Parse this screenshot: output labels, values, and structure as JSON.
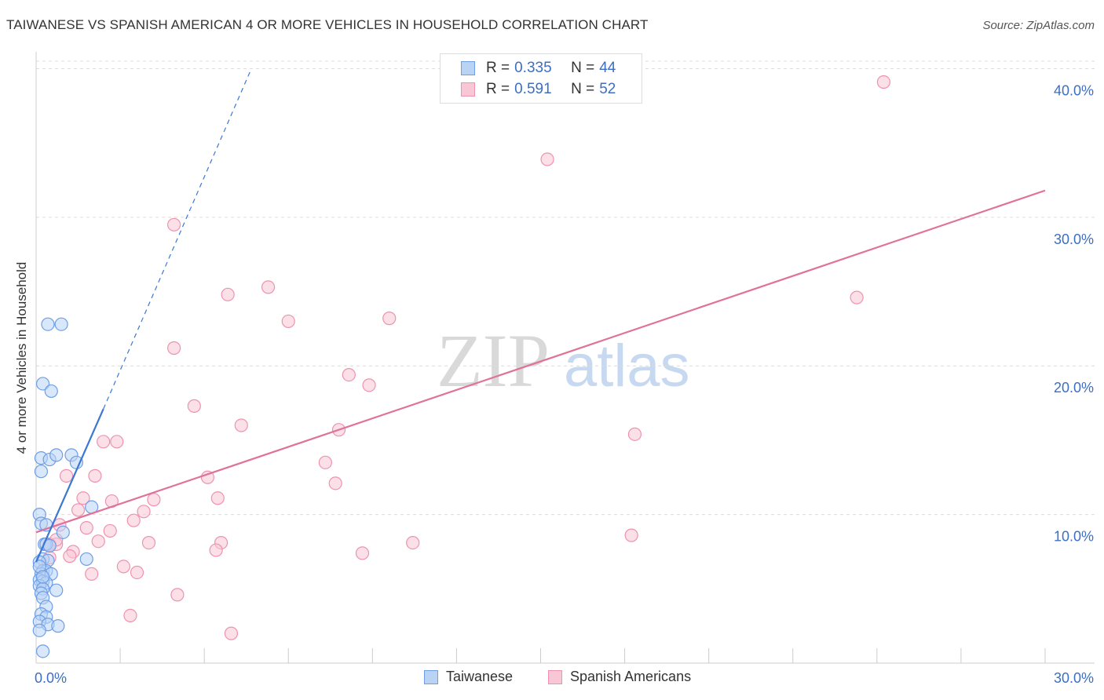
{
  "header": {
    "title": "TAIWANESE VS SPANISH AMERICAN 4 OR MORE VEHICLES IN HOUSEHOLD CORRELATION CHART",
    "source": "Source: ZipAtlas.com"
  },
  "legend": {
    "r_label": "R =",
    "n_label": "N =",
    "taiwanese": {
      "r": "0.335",
      "n": "44",
      "name": "Taiwanese"
    },
    "spanish": {
      "r": "0.591",
      "n": "52",
      "name": "Spanish Americans"
    }
  },
  "watermark": {
    "zip": "ZIP",
    "atlas": "atlas"
  },
  "colors": {
    "blue_fill": "#b9d3f5",
    "blue_stroke": "#6d9ee6",
    "blue_line": "#3a78d4",
    "pink_fill": "#f8c6d5",
    "pink_stroke": "#ee92b0",
    "pink_line": "#e0729a",
    "tick_text": "#3c6fc4"
  },
  "chart_data": {
    "type": "scatter",
    "title": "TAIWANESE VS SPANISH AMERICAN 4 OR MORE VEHICLES IN HOUSEHOLD CORRELATION CHART",
    "xlabel": "",
    "ylabel": "4 or more Vehicles in Household",
    "xlim": [
      0,
      30
    ],
    "ylim": [
      0,
      40.5
    ],
    "x_tick_labels": [
      {
        "value": 0,
        "label": "0.0%"
      },
      {
        "value": 30,
        "label": "30.0%"
      }
    ],
    "y_tick_labels": [
      {
        "value": 10,
        "label": "10.0%"
      },
      {
        "value": 20,
        "label": "20.0%"
      },
      {
        "value": 30,
        "label": "30.0%"
      },
      {
        "value": 40,
        "label": "40.0%"
      }
    ],
    "grid": true,
    "legend_position": "top-center",
    "series": [
      {
        "name": "Taiwanese",
        "trend": {
          "x0": 0.0,
          "y0": 6.8,
          "x1": 2.0,
          "y1": 17.1,
          "dashed_to_x": 6.4,
          "dashed_to_y": 40.0
        },
        "points": [
          [
            0.35,
            22.8
          ],
          [
            0.75,
            22.8
          ],
          [
            0.2,
            18.8
          ],
          [
            0.45,
            18.3
          ],
          [
            0.15,
            13.8
          ],
          [
            0.4,
            13.7
          ],
          [
            0.6,
            14.0
          ],
          [
            1.05,
            14.0
          ],
          [
            1.2,
            13.5
          ],
          [
            0.15,
            12.9
          ],
          [
            1.65,
            10.5
          ],
          [
            0.1,
            10.0
          ],
          [
            0.15,
            9.4
          ],
          [
            0.3,
            9.3
          ],
          [
            0.8,
            8.8
          ],
          [
            0.25,
            8.0
          ],
          [
            0.3,
            8.0
          ],
          [
            0.4,
            7.9
          ],
          [
            0.2,
            7.0
          ],
          [
            0.35,
            6.9
          ],
          [
            0.1,
            6.8
          ],
          [
            1.5,
            7.0
          ],
          [
            0.2,
            6.2
          ],
          [
            0.3,
            6.2
          ],
          [
            0.15,
            6.0
          ],
          [
            0.45,
            6.0
          ],
          [
            0.1,
            5.6
          ],
          [
            0.2,
            5.5
          ],
          [
            0.3,
            5.4
          ],
          [
            0.1,
            5.2
          ],
          [
            0.2,
            5.0
          ],
          [
            0.6,
            4.9
          ],
          [
            0.15,
            4.7
          ],
          [
            0.2,
            4.4
          ],
          [
            0.3,
            3.8
          ],
          [
            0.15,
            3.3
          ],
          [
            0.3,
            3.1
          ],
          [
            0.1,
            2.8
          ],
          [
            0.35,
            2.6
          ],
          [
            0.65,
            2.5
          ],
          [
            0.1,
            2.2
          ],
          [
            0.2,
            0.8
          ],
          [
            0.1,
            6.5
          ],
          [
            0.2,
            5.8
          ]
        ]
      },
      {
        "name": "Spanish Americans",
        "trend": {
          "x0": 0.0,
          "y0": 8.8,
          "x1": 30.0,
          "y1": 31.8
        },
        "points": [
          [
            25.2,
            39.1
          ],
          [
            15.2,
            33.9
          ],
          [
            4.1,
            29.5
          ],
          [
            6.9,
            25.3
          ],
          [
            5.7,
            24.8
          ],
          [
            24.4,
            24.6
          ],
          [
            7.5,
            23.0
          ],
          [
            10.5,
            23.2
          ],
          [
            4.1,
            21.2
          ],
          [
            9.3,
            19.4
          ],
          [
            9.9,
            18.7
          ],
          [
            4.7,
            17.3
          ],
          [
            6.1,
            16.0
          ],
          [
            9.0,
            15.7
          ],
          [
            17.8,
            15.4
          ],
          [
            2.0,
            14.9
          ],
          [
            2.4,
            14.9
          ],
          [
            8.6,
            13.5
          ],
          [
            0.9,
            12.6
          ],
          [
            1.75,
            12.6
          ],
          [
            5.1,
            12.5
          ],
          [
            8.9,
            12.1
          ],
          [
            1.4,
            11.1
          ],
          [
            2.25,
            10.9
          ],
          [
            3.5,
            11.0
          ],
          [
            5.4,
            11.1
          ],
          [
            1.25,
            10.3
          ],
          [
            3.2,
            10.2
          ],
          [
            0.7,
            9.3
          ],
          [
            2.9,
            9.6
          ],
          [
            1.5,
            9.1
          ],
          [
            2.2,
            8.9
          ],
          [
            0.4,
            8.0
          ],
          [
            0.6,
            8.0
          ],
          [
            0.6,
            8.3
          ],
          [
            1.85,
            8.2
          ],
          [
            3.35,
            8.1
          ],
          [
            5.5,
            8.1
          ],
          [
            11.2,
            8.1
          ],
          [
            17.7,
            8.6
          ],
          [
            0.4,
            7.9
          ],
          [
            1.1,
            7.5
          ],
          [
            5.35,
            7.6
          ],
          [
            9.7,
            7.4
          ],
          [
            0.4,
            7.1
          ],
          [
            1.0,
            7.2
          ],
          [
            2.6,
            6.5
          ],
          [
            3.0,
            6.1
          ],
          [
            1.65,
            6.0
          ],
          [
            4.2,
            4.6
          ],
          [
            2.8,
            3.2
          ],
          [
            5.8,
            2.0
          ]
        ]
      }
    ]
  }
}
